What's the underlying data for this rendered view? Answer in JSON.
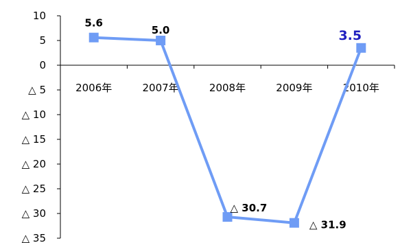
{
  "chart_data": {
    "type": "line",
    "categories": [
      "2006年",
      "2007年",
      "2008年",
      "2009年",
      "2010年"
    ],
    "series": [
      {
        "values": [
          5.6,
          5.0,
          -30.7,
          -31.9,
          3.5
        ]
      }
    ],
    "data_labels": [
      "5.6",
      "5.0",
      "△ 30.7",
      "△ 31.9",
      "3.5"
    ],
    "highlight_index": 4,
    "ylim": [
      -35,
      10
    ],
    "yticks": [
      10,
      5,
      0,
      -5,
      -10,
      -15,
      -20,
      -25,
      -30,
      -35
    ],
    "ytick_labels": [
      "10",
      "5",
      "0",
      "△ 5",
      "△ 10",
      "△ 15",
      "△ 20",
      "△ 25",
      "△ 30",
      "△ 35"
    ],
    "grid": false,
    "colors": {
      "line": "#6F9CF5",
      "marker": "#6F9CF5",
      "highlight_label": "#1F1FBF",
      "axis": "#000000"
    }
  }
}
